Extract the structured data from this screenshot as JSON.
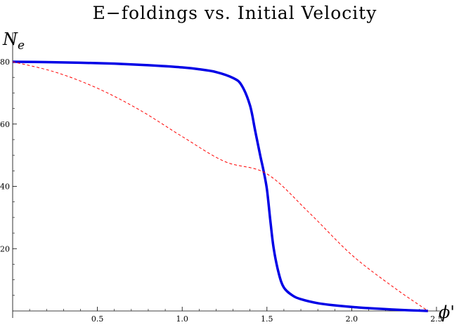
{
  "chart_data": {
    "type": "line",
    "title": "E−foldings  vs. Initial  Velocity",
    "xlabel": "ϕ'",
    "ylabel": "N",
    "ylabel_sub": "e",
    "xlim": [
      0,
      2.5
    ],
    "ylim": [
      0,
      80
    ],
    "xticks": [
      "0.5",
      "1.0",
      "1.5",
      "2.0",
      "2.5"
    ],
    "yticks": [
      "20",
      "40",
      "60",
      "80"
    ],
    "grid": false,
    "colors": {
      "solid": "#0000e6",
      "dashed": "#ff0000"
    },
    "series": [
      {
        "style": "solid",
        "x": [
          0,
          0.2,
          0.4,
          0.6,
          0.8,
          1.0,
          1.1,
          1.2,
          1.3,
          1.35,
          1.4,
          1.43,
          1.46,
          1.48,
          1.5,
          1.52,
          1.54,
          1.57,
          1.6,
          1.65,
          1.7,
          1.8,
          1.9,
          2.0,
          2.1,
          2.2,
          2.3,
          2.4,
          2.45
        ],
        "y": [
          80,
          79.9,
          79.7,
          79.4,
          78.9,
          78.2,
          77.6,
          76.7,
          74.8,
          72.5,
          66,
          58,
          50,
          45,
          39,
          29,
          20,
          12,
          7.5,
          5,
          3.8,
          2.5,
          1.8,
          1.3,
          0.9,
          0.6,
          0.3,
          0.1,
          0
        ]
      },
      {
        "style": "dashed",
        "x": [
          0,
          0.25,
          0.5,
          0.75,
          1.0,
          1.25,
          1.5,
          1.75,
          2.0,
          2.25,
          2.45
        ],
        "y": [
          80,
          76.7,
          71.5,
          64.5,
          56,
          48,
          44,
          31.5,
          18,
          7.5,
          0
        ]
      }
    ]
  }
}
